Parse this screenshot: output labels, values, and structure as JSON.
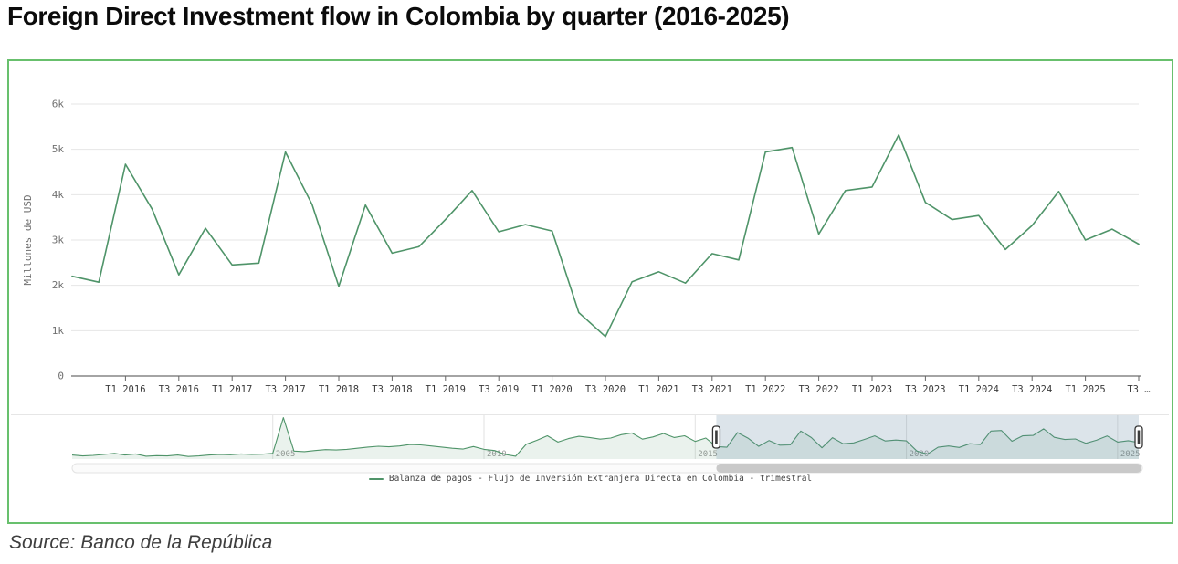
{
  "page": {
    "title": "Foreign Direct Investment flow in Colombia by quarter (2016-2025)",
    "source": "Source: Banco de la República"
  },
  "legend": {
    "label": "Balanza de pagos - Flujo de Inversión Extranjera Directa en Colombia - trimestral"
  },
  "colors": {
    "card_border": "#68c06d",
    "series_line": "#4f9469",
    "nav_area_fill": "rgba(79,148,105,0.12)",
    "grid": "#e6e6e6",
    "axis_line": "#4a4a4a",
    "tick_mark": "#666666",
    "x_tick_label": "#3a3a3a",
    "y_tick_label": "#707070",
    "y_axis_title": "#707070",
    "nav_year_label": "#999999",
    "selection_mask": "rgba(96,130,160,0.22)",
    "handle_fill": "#ffffff",
    "handle_border": "#333333",
    "scrollbar_thumb": "#c9c9c9",
    "scrollbar_track": "#fbfbfb",
    "scrollbar_track_border": "#e3e3e3"
  },
  "chart_data": {
    "type": "line",
    "title": "Foreign Direct Investment flow in Colombia by quarter (2016-2025)",
    "xlabel": "",
    "ylabel": "Millones de USD",
    "ylim": [
      0,
      6000
    ],
    "y_tick_labels": [
      "0",
      "1k",
      "2k",
      "3k",
      "4k",
      "5k",
      "6k"
    ],
    "x_tick_labels": [
      "T1 2016",
      "T3 2016",
      "T1 2017",
      "T3 2017",
      "T1 2018",
      "T3 2018",
      "T1 2019",
      "T3 2019",
      "T1 2020",
      "T3 2020",
      "T1 2021",
      "T3 2021",
      "T1 2022",
      "T3 2022",
      "T1 2023",
      "T3 2023",
      "T1 2024",
      "T3 2024",
      "T1 2025",
      "T3 …"
    ],
    "grid": "horizontal",
    "legend_position": "bottom-center",
    "series": [
      {
        "name": "Balanza de pagos - Flujo de Inversión Extranjera Directa en Colombia - trimestral",
        "start_quarter": "2015 Q3",
        "values": [
          2200,
          2070,
          4670,
          3680,
          2230,
          3260,
          2450,
          2490,
          4940,
          3780,
          1980,
          3770,
          2710,
          2850,
          3450,
          4090,
          3180,
          3340,
          3200,
          1400,
          870,
          2080,
          2300,
          2050,
          2700,
          2560,
          4940,
          5040,
          3130,
          4090,
          4170,
          5320,
          3830,
          3450,
          3540,
          2790,
          3320,
          4070,
          3000,
          3240,
          2910
        ]
      }
    ],
    "navigator": {
      "start_quarter": "2000 Q2",
      "year_labels": [
        "2005",
        "2010",
        "2015",
        "2020",
        "2025"
      ],
      "selected_range_start": "2015 Q3",
      "selected_range_end": "2025 Q3",
      "values": [
        700,
        550,
        650,
        800,
        1000,
        700,
        900,
        500,
        600,
        550,
        700,
        450,
        550,
        700,
        800,
        750,
        900,
        800,
        850,
        1000,
        7300,
        1400,
        1300,
        1500,
        1650,
        1600,
        1700,
        1900,
        2100,
        2250,
        2150,
        2300,
        2550,
        2500,
        2300,
        2100,
        1900,
        1750,
        2200,
        1700,
        1500,
        800,
        500,
        2600,
        3300,
        4100,
        3000,
        3600,
        4000,
        3800,
        3500,
        3700,
        4300,
        4600,
        3500,
        3900,
        4500,
        3800,
        4100,
        3100,
        3700,
        2200,
        2070,
        4670,
        3680,
        2230,
        3260,
        2450,
        2490,
        4940,
        3780,
        1980,
        3770,
        2710,
        2850,
        3450,
        4090,
        3180,
        3340,
        3200,
        1400,
        870,
        2080,
        2300,
        2050,
        2700,
        2560,
        4940,
        5040,
        3130,
        4090,
        4170,
        5320,
        3830,
        3450,
        3540,
        2790,
        3320,
        4070,
        3000,
        3240,
        2910
      ]
    }
  }
}
